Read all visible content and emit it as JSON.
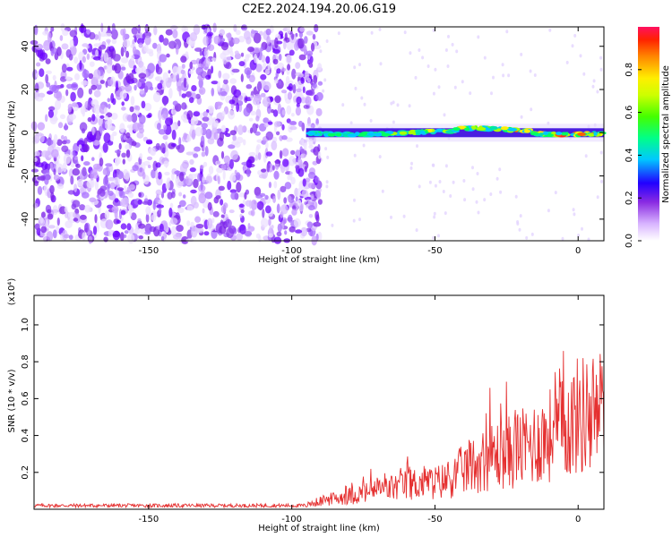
{
  "title": "C2E2.2024.194.20.06.G19",
  "chart_data": [
    {
      "type": "heatmap",
      "xlabel": "Height of straight line (km)",
      "ylabel": "Frequency (Hz)",
      "xlim": [
        -190,
        9
      ],
      "ylim": [
        -50,
        49
      ],
      "xticks": [
        -150,
        -100,
        -50,
        0
      ],
      "yticks": [
        -40,
        -20,
        0,
        20,
        40
      ],
      "colorbar": {
        "label": "Normalized spectral amplitude",
        "range": [
          0,
          1
        ],
        "ticks": [
          0.0,
          0.2,
          0.4,
          0.6,
          0.8
        ],
        "colormap": [
          "#f0f0ff",
          "#d8b4ff",
          "#8a2be2",
          "#5a00ff",
          "#0020ff",
          "#00d0ff",
          "#00ff60",
          "#aaff00",
          "#ffee00",
          "#ff6000",
          "#ff0030"
        ]
      },
      "features": {
        "noise_region_x": [
          -190,
          -90
        ],
        "signal_band_x": [
          -95,
          9
        ],
        "signal_band_freq": 0
      }
    },
    {
      "type": "line",
      "xlabel": "Height of straight line (km)",
      "ylabel": "SNR (10 * v/v)",
      "yscale_note": "(x10⁴)",
      "xlim": [
        -190,
        9
      ],
      "ylim": [
        0,
        1.16
      ],
      "xticks": [
        -150,
        -100,
        -50,
        0
      ],
      "yticks": [
        0.2,
        0.4,
        0.6,
        0.8,
        1.0
      ],
      "series": [
        {
          "color": "#e53030",
          "x": [
            -190,
            -170,
            -150,
            -130,
            -110,
            -95,
            -90,
            -85,
            -80,
            -75,
            -70,
            -65,
            -60,
            -55,
            -50,
            -45,
            -40,
            -35,
            -30,
            -25,
            -20,
            -15,
            -10,
            -5,
            0,
            5,
            9
          ],
          "y": [
            0.02,
            0.025,
            0.02,
            0.02,
            0.02,
            0.03,
            0.06,
            0.08,
            0.1,
            0.12,
            0.14,
            0.16,
            0.18,
            0.2,
            0.2,
            0.22,
            0.3,
            0.35,
            0.4,
            0.42,
            0.45,
            0.5,
            0.55,
            0.6,
            0.7,
            0.72,
            0.75
          ]
        }
      ]
    }
  ]
}
